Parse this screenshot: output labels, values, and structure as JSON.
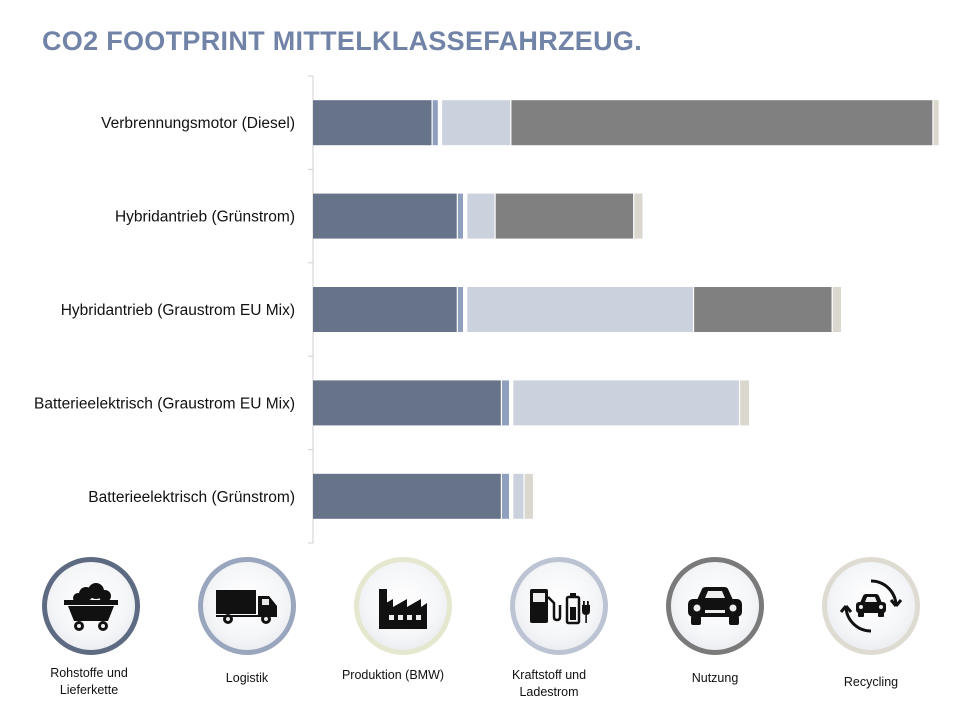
{
  "title": "CO2 FOOTPRINT MITTELKLASSEFAHRZEUG.",
  "chart_data": {
    "type": "bar",
    "orientation": "horizontal",
    "stacked": true,
    "title": "CO2 FOOTPRINT MITTELKLASSEFAHRZEUG.",
    "xlabel": "",
    "ylabel": "",
    "xlim": [
      0,
      100
    ],
    "grid": false,
    "legend": "bottom",
    "categories": [
      "Verbrennungsmotor (Diesel)",
      "Hybridantrieb (Grünstrom)",
      "Hybridantrieb (Graustrom EU Mix)",
      "Batterieelektrisch (Graustrom EU Mix)",
      "Batterieelektrisch (Grünstrom)"
    ],
    "series": [
      {
        "name": "Rohstoffe und Lieferkette",
        "color": "#667389",
        "values": [
          19.0,
          23.0,
          23.0,
          30.0,
          30.0
        ]
      },
      {
        "name": "Logistik",
        "color": "#8fa0bf",
        "values": [
          1.0,
          1.0,
          1.0,
          1.3,
          1.3
        ]
      },
      {
        "name": "Produktion (BMW)",
        "color": "#ffffff",
        "values": [
          0.5,
          0.5,
          0.5,
          0.5,
          0.5
        ]
      },
      {
        "name": "Kraftstoff und Ladestrom",
        "color": "#cbd1dd",
        "values": [
          11.0,
          4.5,
          36.0,
          36.0,
          1.8
        ]
      },
      {
        "name": "Nutzung",
        "color": "#808080",
        "values": [
          67.0,
          22.0,
          22.0,
          0,
          0
        ]
      },
      {
        "name": "Recycling",
        "color": "#dad7cf",
        "values": [
          1.0,
          1.5,
          1.5,
          1.6,
          1.5
        ]
      }
    ]
  },
  "legend_items": [
    {
      "label": "Rohstoffe und Lieferkette",
      "icon": "mine-cart-icon",
      "ring_color": "#5d6a82"
    },
    {
      "label": "Logistik",
      "icon": "truck-icon",
      "ring_color": "#9aa6be"
    },
    {
      "label": "Produktion (BMW)",
      "icon": "factory-icon",
      "ring_color": "#e6e7cf"
    },
    {
      "label": "Kraftstoff und Ladestrom",
      "icon": "fuel-and-charging-icon",
      "ring_color": "#bcc4d3"
    },
    {
      "label": "Nutzung",
      "icon": "car-icon",
      "ring_color": "#7a7a7a"
    },
    {
      "label": "Recycling",
      "icon": "recycling-car-icon",
      "ring_color": "#dedbd2"
    }
  ]
}
